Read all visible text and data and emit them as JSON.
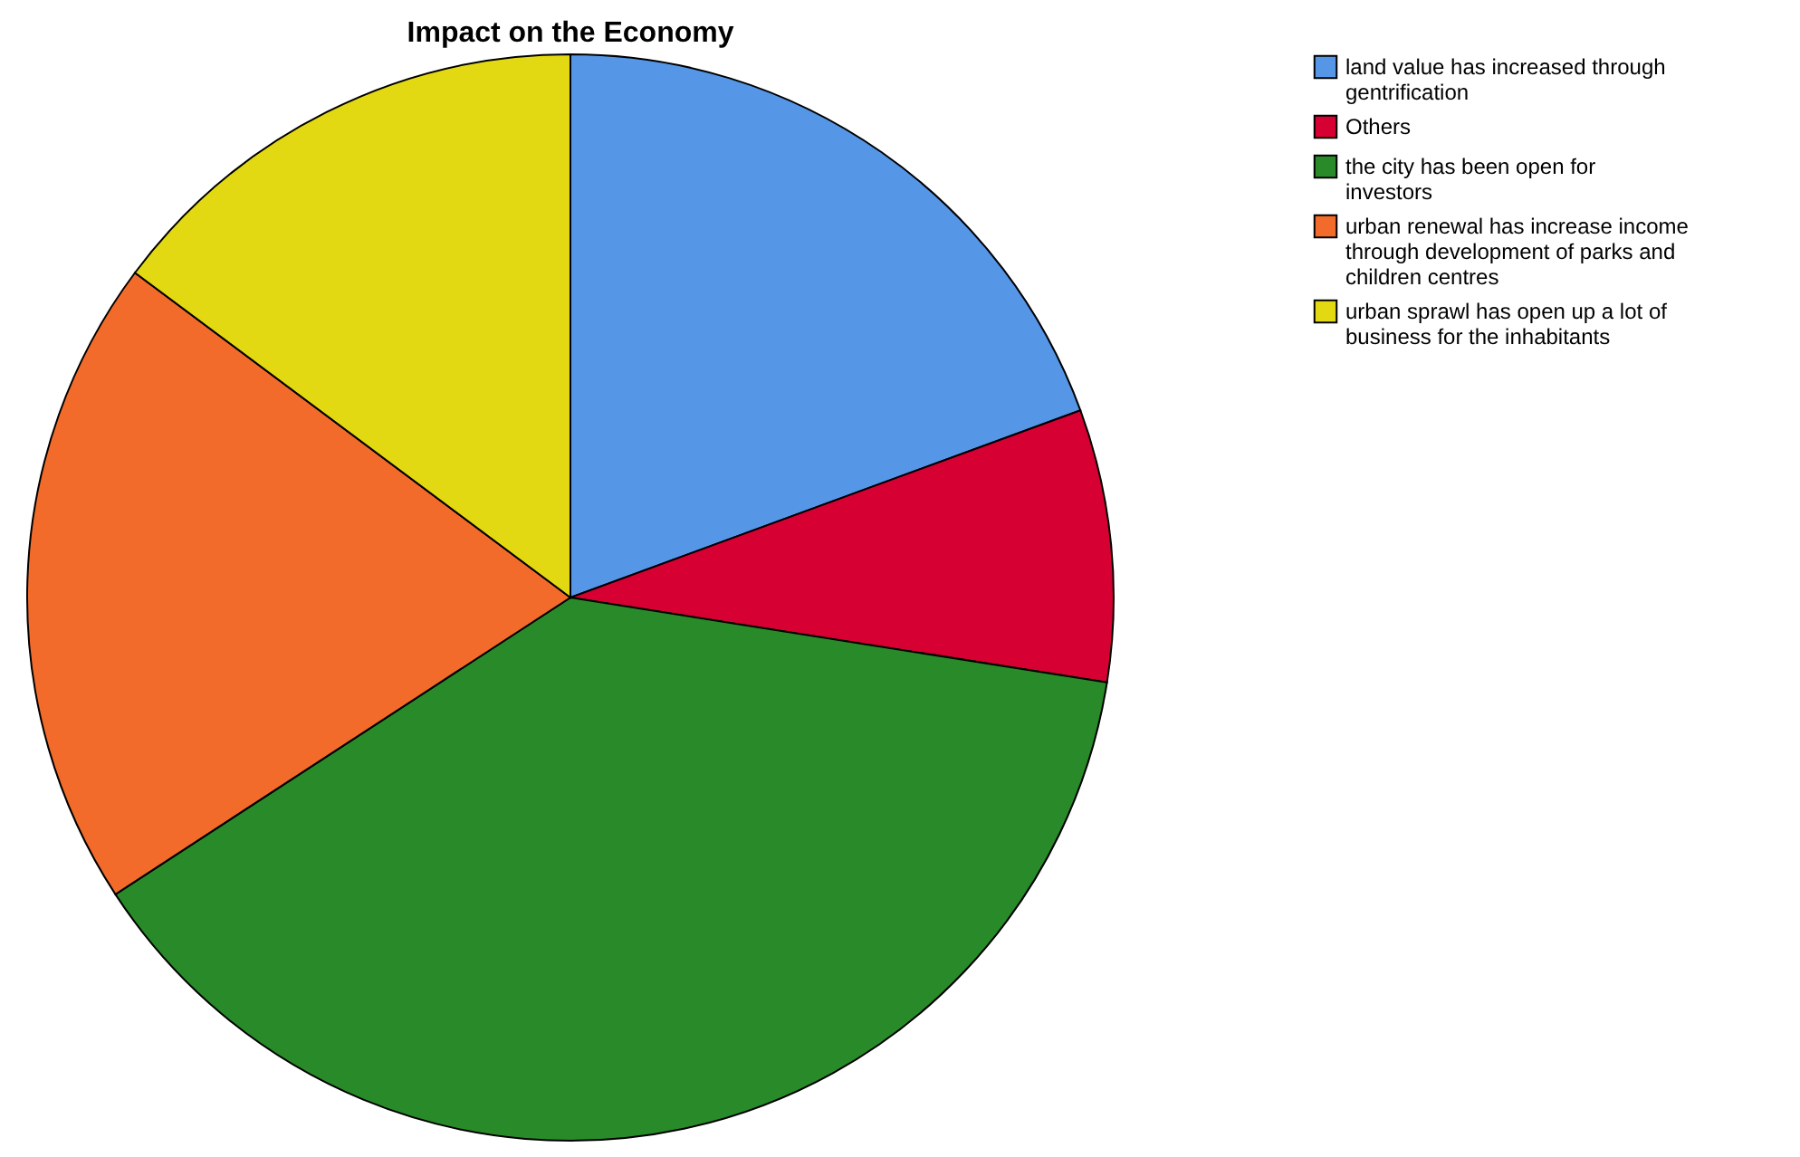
{
  "chart_data": {
    "type": "pie",
    "title": "Impact on the Economy",
    "categories": [
      "land value has increased through gentrification",
      "Others",
      "the city has been open for investors",
      "urban renewal has increase income through development of parks and children centres",
      "urban sprawl has open up a lot of business for the inhabitants"
    ],
    "values": [
      19.4,
      8.1,
      38.3,
      19.4,
      14.8
    ],
    "colors": [
      "#5596e6",
      "#d60032",
      "#288a28",
      "#f26b2b",
      "#e2d913"
    ],
    "legend": "top right"
  }
}
